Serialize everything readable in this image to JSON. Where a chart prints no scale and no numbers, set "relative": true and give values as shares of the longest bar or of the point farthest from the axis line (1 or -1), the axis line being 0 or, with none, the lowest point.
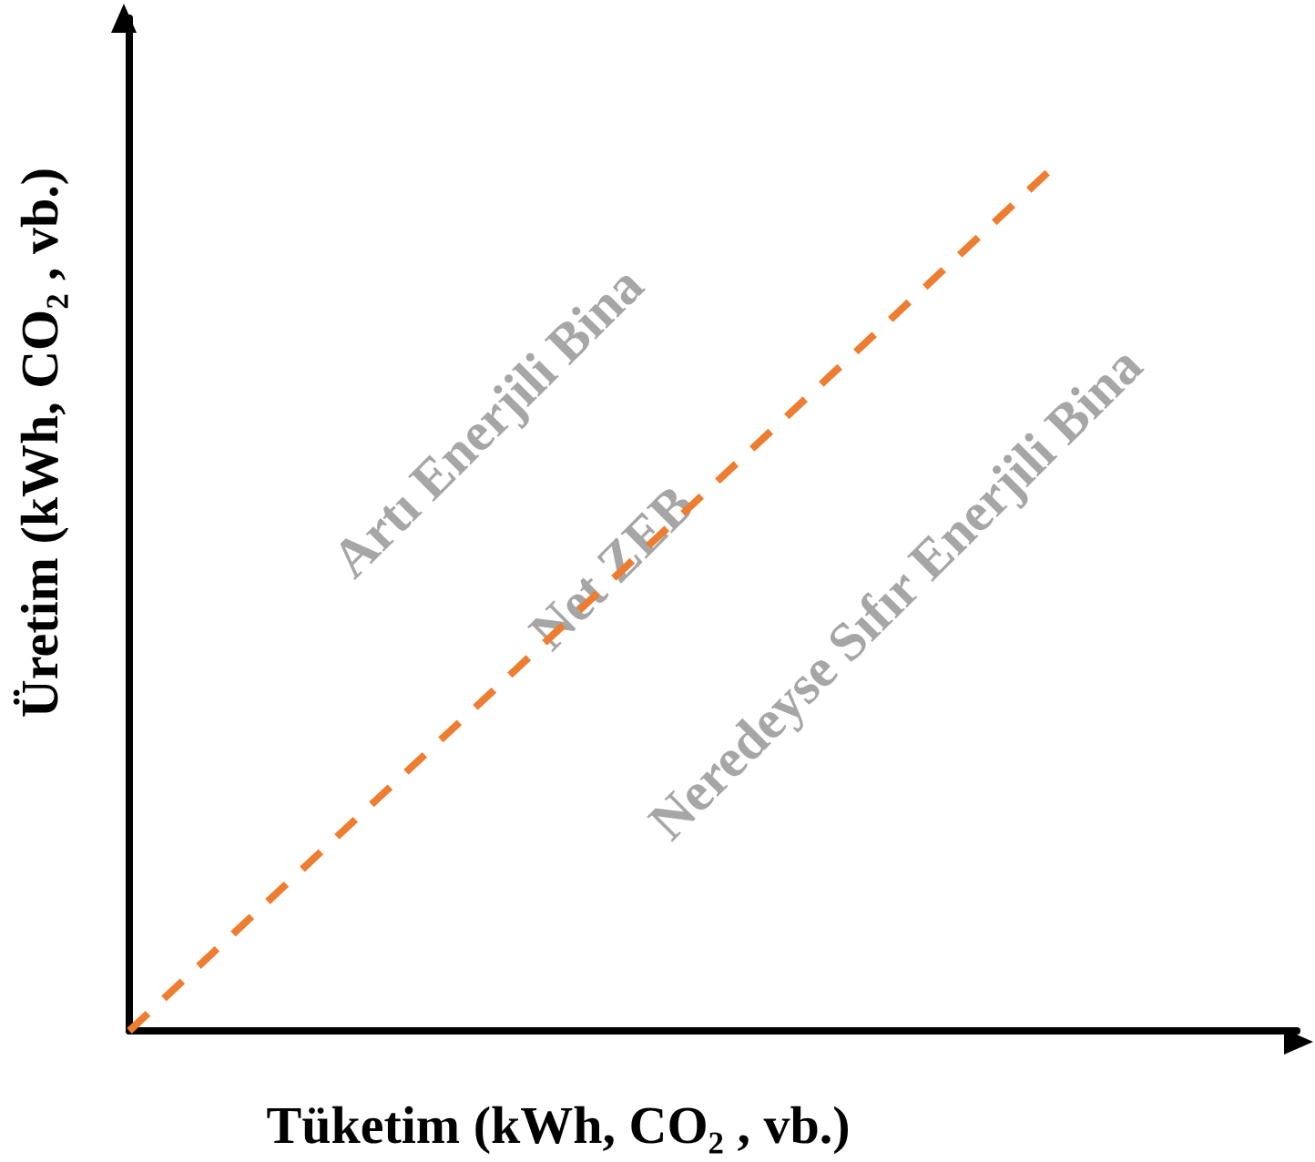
{
  "chart_data": {
    "type": "line",
    "relative": true,
    "xlabel": "Tüketim (kWh, CO₂ , vb.)",
    "ylabel": "Üretim (kWh, CO₂ , vb.)",
    "categories": [
      null,
      null,
      null,
      null,
      null,
      null
    ],
    "series": [
      {
        "color": "#ed7d31",
        "values": [
          0,
          0.25,
          0.5,
          0.75,
          1,
          null
        ]
      }
    ],
    "line_style": "dashed",
    "marker": "none",
    "grid": false,
    "annotations": [
      "Artı Enerjili Bina",
      "Net ZEB",
      "Neredeyse Sıfır Enerjili Bina"
    ]
  }
}
